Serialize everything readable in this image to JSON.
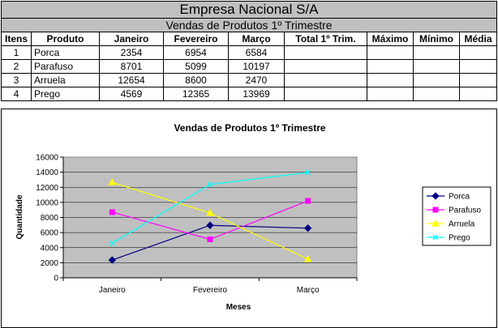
{
  "sheet": {
    "company": "Empresa Nacional S/A",
    "subtitle": "Vendas de Produtos 1º Trimestre",
    "headers": [
      "Itens",
      "Produto",
      "Janeiro",
      "Fevereiro",
      "Março",
      "Total 1º Trim.",
      "Máximo",
      "Mínimo",
      "Média"
    ],
    "rows": [
      {
        "item": "1",
        "produto": "Porca",
        "jan": "2354",
        "fev": "6954",
        "mar": "6584"
      },
      {
        "item": "2",
        "produto": "Parafuso",
        "jan": "8701",
        "fev": "5099",
        "mar": "10197"
      },
      {
        "item": "3",
        "produto": "Arruela",
        "jan": "12654",
        "fev": "8600",
        "mar": "2470"
      },
      {
        "item": "4",
        "produto": "Prego",
        "jan": "4569",
        "fev": "12365",
        "mar": "13969"
      }
    ]
  },
  "chart_data": {
    "type": "line",
    "title": "Vendas de Produtos 1º Trimestre",
    "xlabel": "Meses",
    "ylabel": "Quantidade",
    "categories": [
      "Janeiro",
      "Fevereiro",
      "Março"
    ],
    "ylim": [
      0,
      16000
    ],
    "yticks": [
      "0",
      "2000",
      "4000",
      "6000",
      "8000",
      "10000",
      "12000",
      "14000",
      "16000"
    ],
    "grid": true,
    "legend_position": "right",
    "plot_background": "#c0c0c0",
    "series": [
      {
        "name": "Porca",
        "values": [
          2354,
          6954,
          6584
        ],
        "color": "#000080",
        "marker": "diamond"
      },
      {
        "name": "Parafuso",
        "values": [
          8701,
          5099,
          10197
        ],
        "color": "#ff00ff",
        "marker": "square"
      },
      {
        "name": "Arruela",
        "values": [
          12654,
          8600,
          2470
        ],
        "color": "#ffff00",
        "marker": "triangle"
      },
      {
        "name": "Prego",
        "values": [
          4569,
          12365,
          13969
        ],
        "color": "#00ffff",
        "marker": "x"
      }
    ]
  }
}
